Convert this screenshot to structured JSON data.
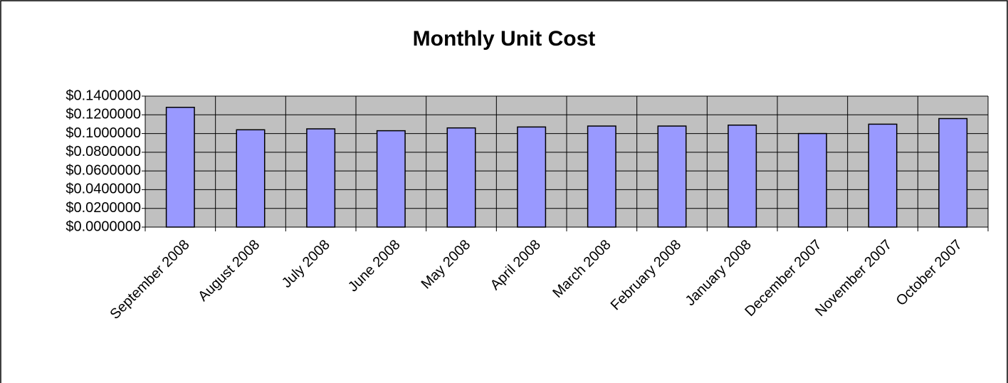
{
  "chart_data": {
    "type": "bar",
    "title": "Monthly Unit Cost",
    "categories": [
      "September 2008",
      "August 2008",
      "July 2008",
      "June 2008",
      "May 2008",
      "April 2008",
      "March 2008",
      "February 2008",
      "January 2008",
      "December 2007",
      "November 2007",
      "October 2007"
    ],
    "values": [
      0.128,
      0.104,
      0.105,
      0.103,
      0.106,
      0.107,
      0.108,
      0.108,
      0.109,
      0.1,
      0.11,
      0.116
    ],
    "color": "#9999ff",
    "ylim": [
      0,
      0.14
    ],
    "yticks": [
      {
        "value": 0,
        "label": "$0.0000000"
      },
      {
        "value": 0.02,
        "label": "$0.0200000"
      },
      {
        "value": 0.04,
        "label": "$0.0400000"
      },
      {
        "value": 0.06,
        "label": "$0.0600000"
      },
      {
        "value": 0.08,
        "label": "$0.0800000"
      },
      {
        "value": 0.1,
        "label": "$0.1000000"
      },
      {
        "value": 0.12,
        "label": "$0.1200000"
      },
      {
        "value": 0.14,
        "label": "$0.1400000"
      }
    ],
    "grid": true
  }
}
